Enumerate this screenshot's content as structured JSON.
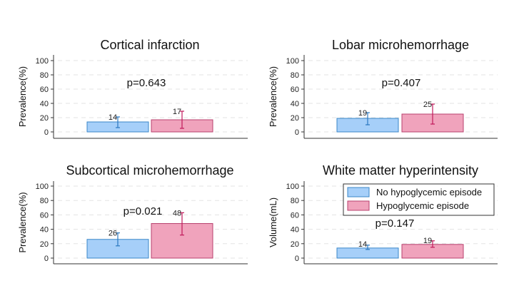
{
  "chart_data": [
    {
      "type": "bar",
      "title": "Cortical infarction",
      "ylabel": "Prevalence(%)",
      "xlabel": "",
      "ylim": [
        0,
        100
      ],
      "yticks": [
        0,
        20,
        40,
        60,
        80,
        100
      ],
      "grid": "horizontal-dashed",
      "annotation": "p=0.643",
      "series": [
        {
          "name": "No hypoglycemic episode",
          "value": 14,
          "ci": [
            6,
            21
          ],
          "label": "14"
        },
        {
          "name": "Hypoglycemic episode",
          "value": 17,
          "ci": [
            5,
            29
          ],
          "label": "17"
        }
      ]
    },
    {
      "type": "bar",
      "title": "Lobar microhemorrhage",
      "ylabel": "Prevalence(%)",
      "xlabel": "",
      "ylim": [
        0,
        100
      ],
      "yticks": [
        0,
        20,
        40,
        60,
        80,
        100
      ],
      "grid": "horizontal-dashed",
      "annotation": "p=0.407",
      "series": [
        {
          "name": "No hypoglycemic episode",
          "value": 19,
          "ci": [
            10,
            27
          ],
          "label": "19"
        },
        {
          "name": "Hypoglycemic episode",
          "value": 25,
          "ci": [
            11,
            39
          ],
          "label": "25"
        }
      ]
    },
    {
      "type": "bar",
      "title": "Subcortical microhemorrhage",
      "ylabel": "Prevalence(%)",
      "xlabel": "",
      "ylim": [
        0,
        100
      ],
      "yticks": [
        0,
        20,
        40,
        60,
        80,
        100
      ],
      "grid": "horizontal-dashed",
      "annotation": "p=0.021",
      "series": [
        {
          "name": "No hypoglycemic episode",
          "value": 26,
          "ci": [
            17,
            35
          ],
          "label": "26"
        },
        {
          "name": "Hypoglycemic episode",
          "value": 48,
          "ci": [
            32,
            63
          ],
          "label": "48"
        }
      ]
    },
    {
      "type": "bar",
      "title": "White matter hyperintensity",
      "ylabel": "Volume(mL)",
      "xlabel": "",
      "ylim": [
        0,
        100
      ],
      "yticks": [
        0,
        20,
        40,
        60,
        80,
        100
      ],
      "grid": "horizontal-dashed",
      "annotation": "p=0.147",
      "legend": {
        "placement": "top-right",
        "entries": [
          "No hypoglycemic episode",
          "Hypoglycemic episode"
        ]
      },
      "series": [
        {
          "name": "No hypoglycemic episode",
          "value": 14,
          "ci": [
            12,
            18
          ],
          "label": "14"
        },
        {
          "name": "Hypoglycemic episode",
          "value": 19,
          "ci": [
            15,
            24
          ],
          "label": "19"
        }
      ]
    }
  ],
  "colors": {
    "group1_fill": "#a6cff9",
    "group1_stroke": "#3b87c8",
    "group1_err": "#2a78c0",
    "group2_fill": "#f0a3bc",
    "group2_stroke": "#b8406e",
    "group2_err": "#c0185a",
    "axis": "#333333",
    "grid": "#e3e3e3"
  }
}
